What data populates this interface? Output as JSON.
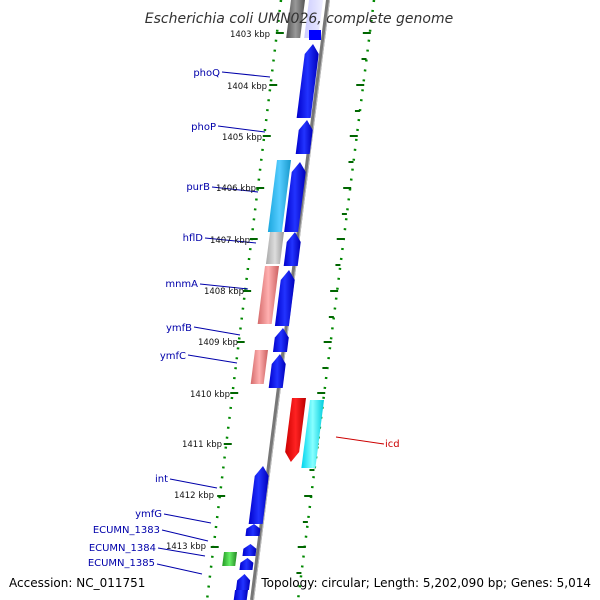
{
  "title": "Escherichia coli UMN026, complete genome",
  "footer": {
    "accession": "Accession: NC_011751",
    "summary": "Topology: circular; Length: 5,202,090 bp; Genes: 5,014"
  },
  "kbp_labels": [
    "1403 kbp",
    "1404 kbp",
    "1405 kbp",
    "1406 kbp",
    "1407 kbp",
    "1408 kbp",
    "1409 kbp",
    "1410 kbp",
    "1411 kbp",
    "1412 kbp",
    "1413 kbp"
  ],
  "gene_labels": {
    "phoQ": "phoQ",
    "phoP": "phoP",
    "purB": "purB",
    "hflD": "hflD",
    "mnmA": "mnmA",
    "ymfB": "ymfB",
    "ymfC": "ymfC",
    "icd": "icd",
    "int": "int",
    "ymfG": "ymfG",
    "ecumn1383": "ECUMN_1383",
    "ecumn1384": "ECUMN_1384",
    "ecumn1385": "ECUMN_1385"
  },
  "colors": {
    "forward_cds": "#0000ff",
    "reverse_cds_red": "#ff0000",
    "reverse_cds_cyan": "#00ffff",
    "purB_cds": "#22bbee",
    "hflD_cds": "#bbbbbb",
    "mnmA_cds": "#ee8080",
    "ymfC_cds": "#ee8080",
    "small_green": "#33cc33",
    "top_gray": "#777777",
    "tick_green": "#007700",
    "backbone": "#777777",
    "gene_label": "#0000aa",
    "icd_label": "#cc0000"
  }
}
